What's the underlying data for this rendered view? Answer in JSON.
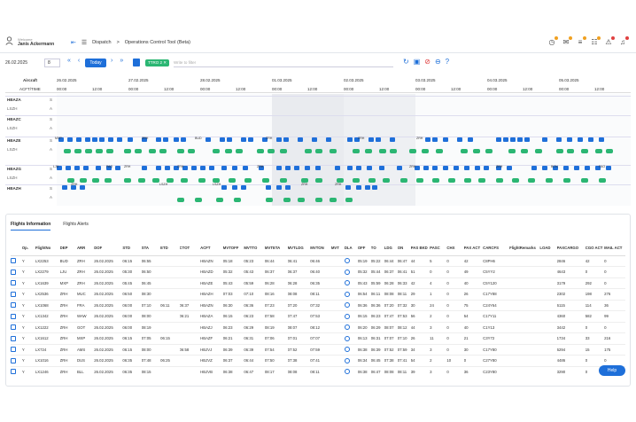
{
  "header": {
    "welcome": "Welcome",
    "user": "Janis Ackermann",
    "breadcrumb_1": "Dispatch",
    "separator": ">",
    "breadcrumb_2": "Operations Control Tool (Beta)"
  },
  "toolbar": {
    "date": "26.02.2025",
    "days": "8",
    "today_label": "Today",
    "chip_label": "TTRO 2 ✕",
    "filter_placeholder": "Write to filter"
  },
  "gantt": {
    "aircraft_label": "Aircraft",
    "col2_label": "ACFT/TIME",
    "dates": [
      "26.02.2025",
      "27.02.2025",
      "28.02.2025",
      "01.03.2025",
      "02.03.2025",
      "03.03.2025",
      "04.03.2025",
      "05.03.2025"
    ],
    "times": [
      "00:00",
      "12:00",
      "00:00",
      "12:00",
      "00:00",
      "12:00",
      "00:00",
      "12:00",
      "00:00",
      "12:00",
      "00:00",
      "12:00",
      "00:00",
      "12:00",
      "00:00",
      "12:00"
    ],
    "aircraft": [
      {
        "reg": "HBAZA",
        "s": "S",
        "sub": "LSZH",
        "a": "A"
      },
      {
        "reg": "HBAZC",
        "s": "S",
        "sub": "LSZH",
        "a": "A"
      },
      {
        "reg": "HBAZE",
        "s": "S",
        "sub": "LSZH",
        "a": "A"
      },
      {
        "reg": "HBAZG",
        "s": "S",
        "sub": "LSZH",
        "a": "A"
      },
      {
        "reg": "HBAZH",
        "s": "S",
        "sub": "",
        "a": "A"
      }
    ],
    "labels": [
      "MXP",
      "BUD",
      "ZRH",
      "ZRH",
      "ZRH",
      "LJU",
      "ZRH",
      "ZRH",
      "BCN",
      "ZRH",
      "LSZH",
      "LSZH",
      "ZRH",
      "ZRH",
      "ZRH",
      "FAO",
      "ZRH",
      "ZRH",
      "ZRH",
      "FAO"
    ]
  },
  "tabs": [
    "Flights Information",
    "Flights Alerts"
  ],
  "table": {
    "columns": [
      "",
      "Op.",
      "FlightNo",
      "DEP",
      "ARR",
      "DOF",
      "STD",
      "STA",
      "ETD",
      "CTOT",
      "ACFT",
      "MVTOFF",
      "MVTTO",
      "MVTETA",
      "MVTLDG",
      "MVTON",
      "MVT",
      "DLA",
      "OFF",
      "TO",
      "LDG",
      "ON",
      "PAS BKD",
      "PASC",
      "CHX",
      "PAX ACT",
      "CARCFS",
      "FlightRemarks",
      "LOAD",
      "PAXCARGO",
      "CGO ACT",
      "MAIL ACT"
    ],
    "rows": [
      [
        "",
        "Y",
        "LX2253",
        "BUD",
        "ZRH",
        "26.02.2025",
        "06:15",
        "06:55",
        "",
        "",
        "HBAZN",
        "05:18",
        "05:23",
        "06:44",
        "06:41",
        "06:46",
        "",
        "",
        "05:19",
        "05:22",
        "06:44",
        "06:47",
        "44",
        "5",
        "0",
        "42",
        "C8PH6",
        "",
        "",
        "2846",
        "42",
        "0"
      ],
      [
        "",
        "Y",
        "LX2279",
        "LJU",
        "ZRH",
        "26.02.2025",
        "05:30",
        "06:50",
        "",
        "",
        "HBAZD",
        "05:32",
        "05:43",
        "06:37",
        "06:37",
        "06:40",
        "",
        "",
        "05:32",
        "05:44",
        "06:37",
        "06:41",
        "51",
        "0",
        "0",
        "49",
        "C5YY2",
        "",
        "",
        "4643",
        "0",
        "0"
      ],
      [
        "",
        "Y",
        "LX1639",
        "MXP",
        "ZRH",
        "26.02.2025",
        "05:45",
        "06:45",
        "",
        "",
        "HBAZE",
        "05:43",
        "05:59",
        "06:28",
        "06:28",
        "06:35",
        "",
        "",
        "05:43",
        "05:59",
        "06:28",
        "06:33",
        "42",
        "4",
        "0",
        "40",
        "C5Y120",
        "",
        "",
        "3179",
        "292",
        "0"
      ],
      [
        "",
        "Y",
        "LX2536",
        "ZRH",
        "MUC",
        "26.02.2025",
        "06:50",
        "08:30",
        "",
        "",
        "HBAZH",
        "07:03",
        "07:10",
        "08:16",
        "08:08",
        "08:11",
        "",
        "",
        "06:54",
        "06:11",
        "08:08",
        "08:11",
        "29",
        "1",
        "0",
        "26",
        "C17Y88",
        "",
        "",
        "2302",
        "198",
        "276"
      ],
      [
        "",
        "Y",
        "LX1068",
        "ZRH",
        "FRA",
        "26.02.2025",
        "06:00",
        "07:10",
        "06:11",
        "06:37",
        "HBAZN",
        "06:30",
        "06:36",
        "07:23",
        "07:20",
        "07:32",
        "",
        "",
        "06:36",
        "06:36",
        "07:20",
        "07:32",
        "30",
        "24",
        "0",
        "75",
        "C24Y64",
        "",
        "",
        "6115",
        "114",
        "36"
      ],
      [
        "",
        "Y",
        "LX1342",
        "ZRH",
        "WAW",
        "26.02.2025",
        "06:00",
        "08:00",
        "",
        "06:21",
        "HBAZA",
        "06:15",
        "06:23",
        "07:58",
        "07:47",
        "07:53",
        "",
        "",
        "06:15",
        "06:23",
        "07:47",
        "07:53",
        "56",
        "2",
        "0",
        "54",
        "C17Y11",
        "",
        "",
        "4360",
        "582",
        "99"
      ],
      [
        "",
        "Y",
        "LX1222",
        "ZRH",
        "GOT",
        "26.02.2025",
        "06:00",
        "08:19",
        "",
        "",
        "HBAZJ",
        "06:23",
        "06:29",
        "08:19",
        "08:07",
        "08:12",
        "",
        "",
        "06:20",
        "06:29",
        "08:07",
        "08:12",
        "44",
        "3",
        "0",
        "40",
        "C1Y13",
        "",
        "",
        "3442",
        "0",
        "0"
      ],
      [
        "",
        "Y",
        "LX1612",
        "ZRH",
        "MXP",
        "26.02.2025",
        "06:15",
        "07:05",
        "06:15",
        "",
        "HBAZF",
        "06:21",
        "06:31",
        "07:06",
        "07:01",
        "07:07",
        "",
        "",
        "06:13",
        "06:31",
        "07:07",
        "07:10",
        "26",
        "11",
        "0",
        "21",
        "C3Y72",
        "",
        "",
        "1734",
        "33",
        "216"
      ],
      [
        "",
        "Y",
        "LX724",
        "ZRH",
        "AMS",
        "26.02.2025",
        "06:15",
        "08:00",
        "",
        "06:58",
        "HBJVJ",
        "06:39",
        "06:39",
        "07:54",
        "07:52",
        "07:59",
        "",
        "",
        "06:38",
        "06:39",
        "07:52",
        "07:59",
        "34",
        "3",
        "0",
        "30",
        "C17Y80",
        "",
        "",
        "6294",
        "15",
        "175"
      ],
      [
        "",
        "Y",
        "LX1016",
        "ZRH",
        "DUS",
        "26.02.2025",
        "06:35",
        "07:48",
        "06:25",
        "",
        "HBJVZ",
        "06:37",
        "06:44",
        "07:50",
        "07:38",
        "07:41",
        "",
        "",
        "06:34",
        "06:45",
        "07:38",
        "07:41",
        "54",
        "2",
        "10",
        "0",
        "C27Y80",
        "",
        "",
        "4486",
        "0",
        "0"
      ],
      [
        "",
        "Y",
        "LX1246",
        "ZRH",
        "BLL",
        "26.02.2025",
        "06:35",
        "08:15",
        "",
        "",
        "HBJVB",
        "06:38",
        "06:47",
        "08:17",
        "08:08",
        "08:11",
        "",
        "",
        "06:38",
        "06:47",
        "08:08",
        "08:11",
        "39",
        "3",
        "0",
        "36",
        "C23Y80",
        "",
        "",
        "3290",
        "0",
        "0"
      ]
    ]
  },
  "help_label": "Help",
  "colors": {
    "accent": "#1e6fd9",
    "green": "#2bb673"
  }
}
